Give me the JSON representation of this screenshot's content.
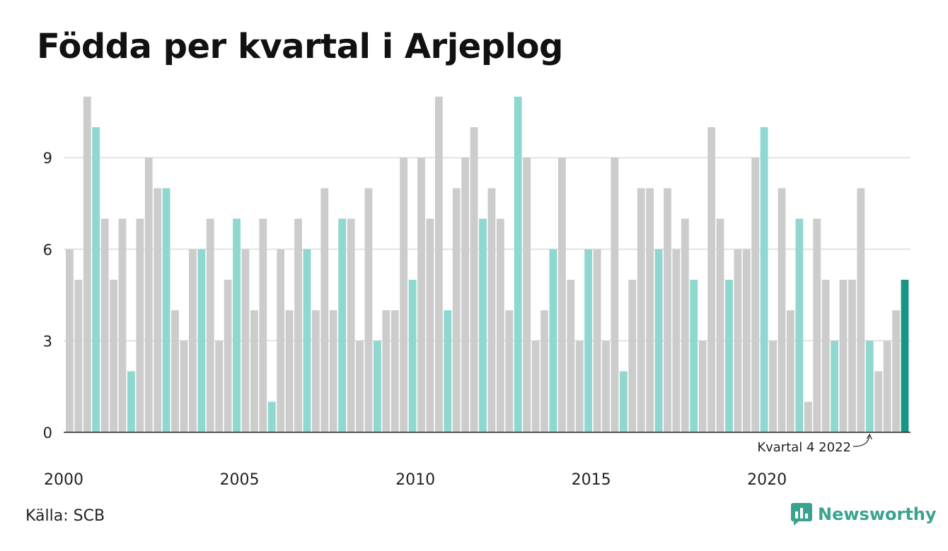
{
  "title": "Födda per kvartal i Arjeplog",
  "source": "Källa: SCB",
  "brand": "Newsworthy",
  "colors": {
    "bar": "#cccccc",
    "highlight_q1": "#8fd8d0",
    "current": "#1a9585",
    "grid": "#e3e3e3",
    "brand": "#3aa38f"
  },
  "chart_data": {
    "type": "bar",
    "ylim": [
      0,
      11
    ],
    "yticks": [
      "0",
      "3",
      "6",
      "9"
    ],
    "xticks": [
      "2000",
      "2005",
      "2010",
      "2015",
      "2020"
    ],
    "grid": true,
    "annotation": "Kvartal 4 2022",
    "series": [
      {
        "values": [
          6,
          5,
          11,
          10,
          7,
          5,
          7,
          2,
          7,
          9,
          8,
          8,
          4,
          3,
          6,
          6,
          7,
          3,
          5,
          7,
          6,
          4,
          7,
          1,
          6,
          4,
          7,
          6,
          4,
          8,
          4,
          7,
          7,
          3,
          8,
          3,
          4,
          4,
          9,
          5,
          9,
          7,
          11,
          4,
          8,
          9,
          10,
          7,
          8,
          7,
          4,
          11,
          9,
          3,
          4,
          6,
          9,
          5,
          3,
          6,
          6,
          3,
          9,
          2,
          5,
          8,
          8,
          6,
          8,
          6,
          7,
          5,
          3,
          10,
          7,
          5,
          6,
          6,
          9,
          10,
          3,
          8,
          4,
          7,
          1,
          7,
          5,
          3,
          5,
          5,
          8,
          3,
          2,
          3,
          4,
          5
        ]
      }
    ]
  }
}
